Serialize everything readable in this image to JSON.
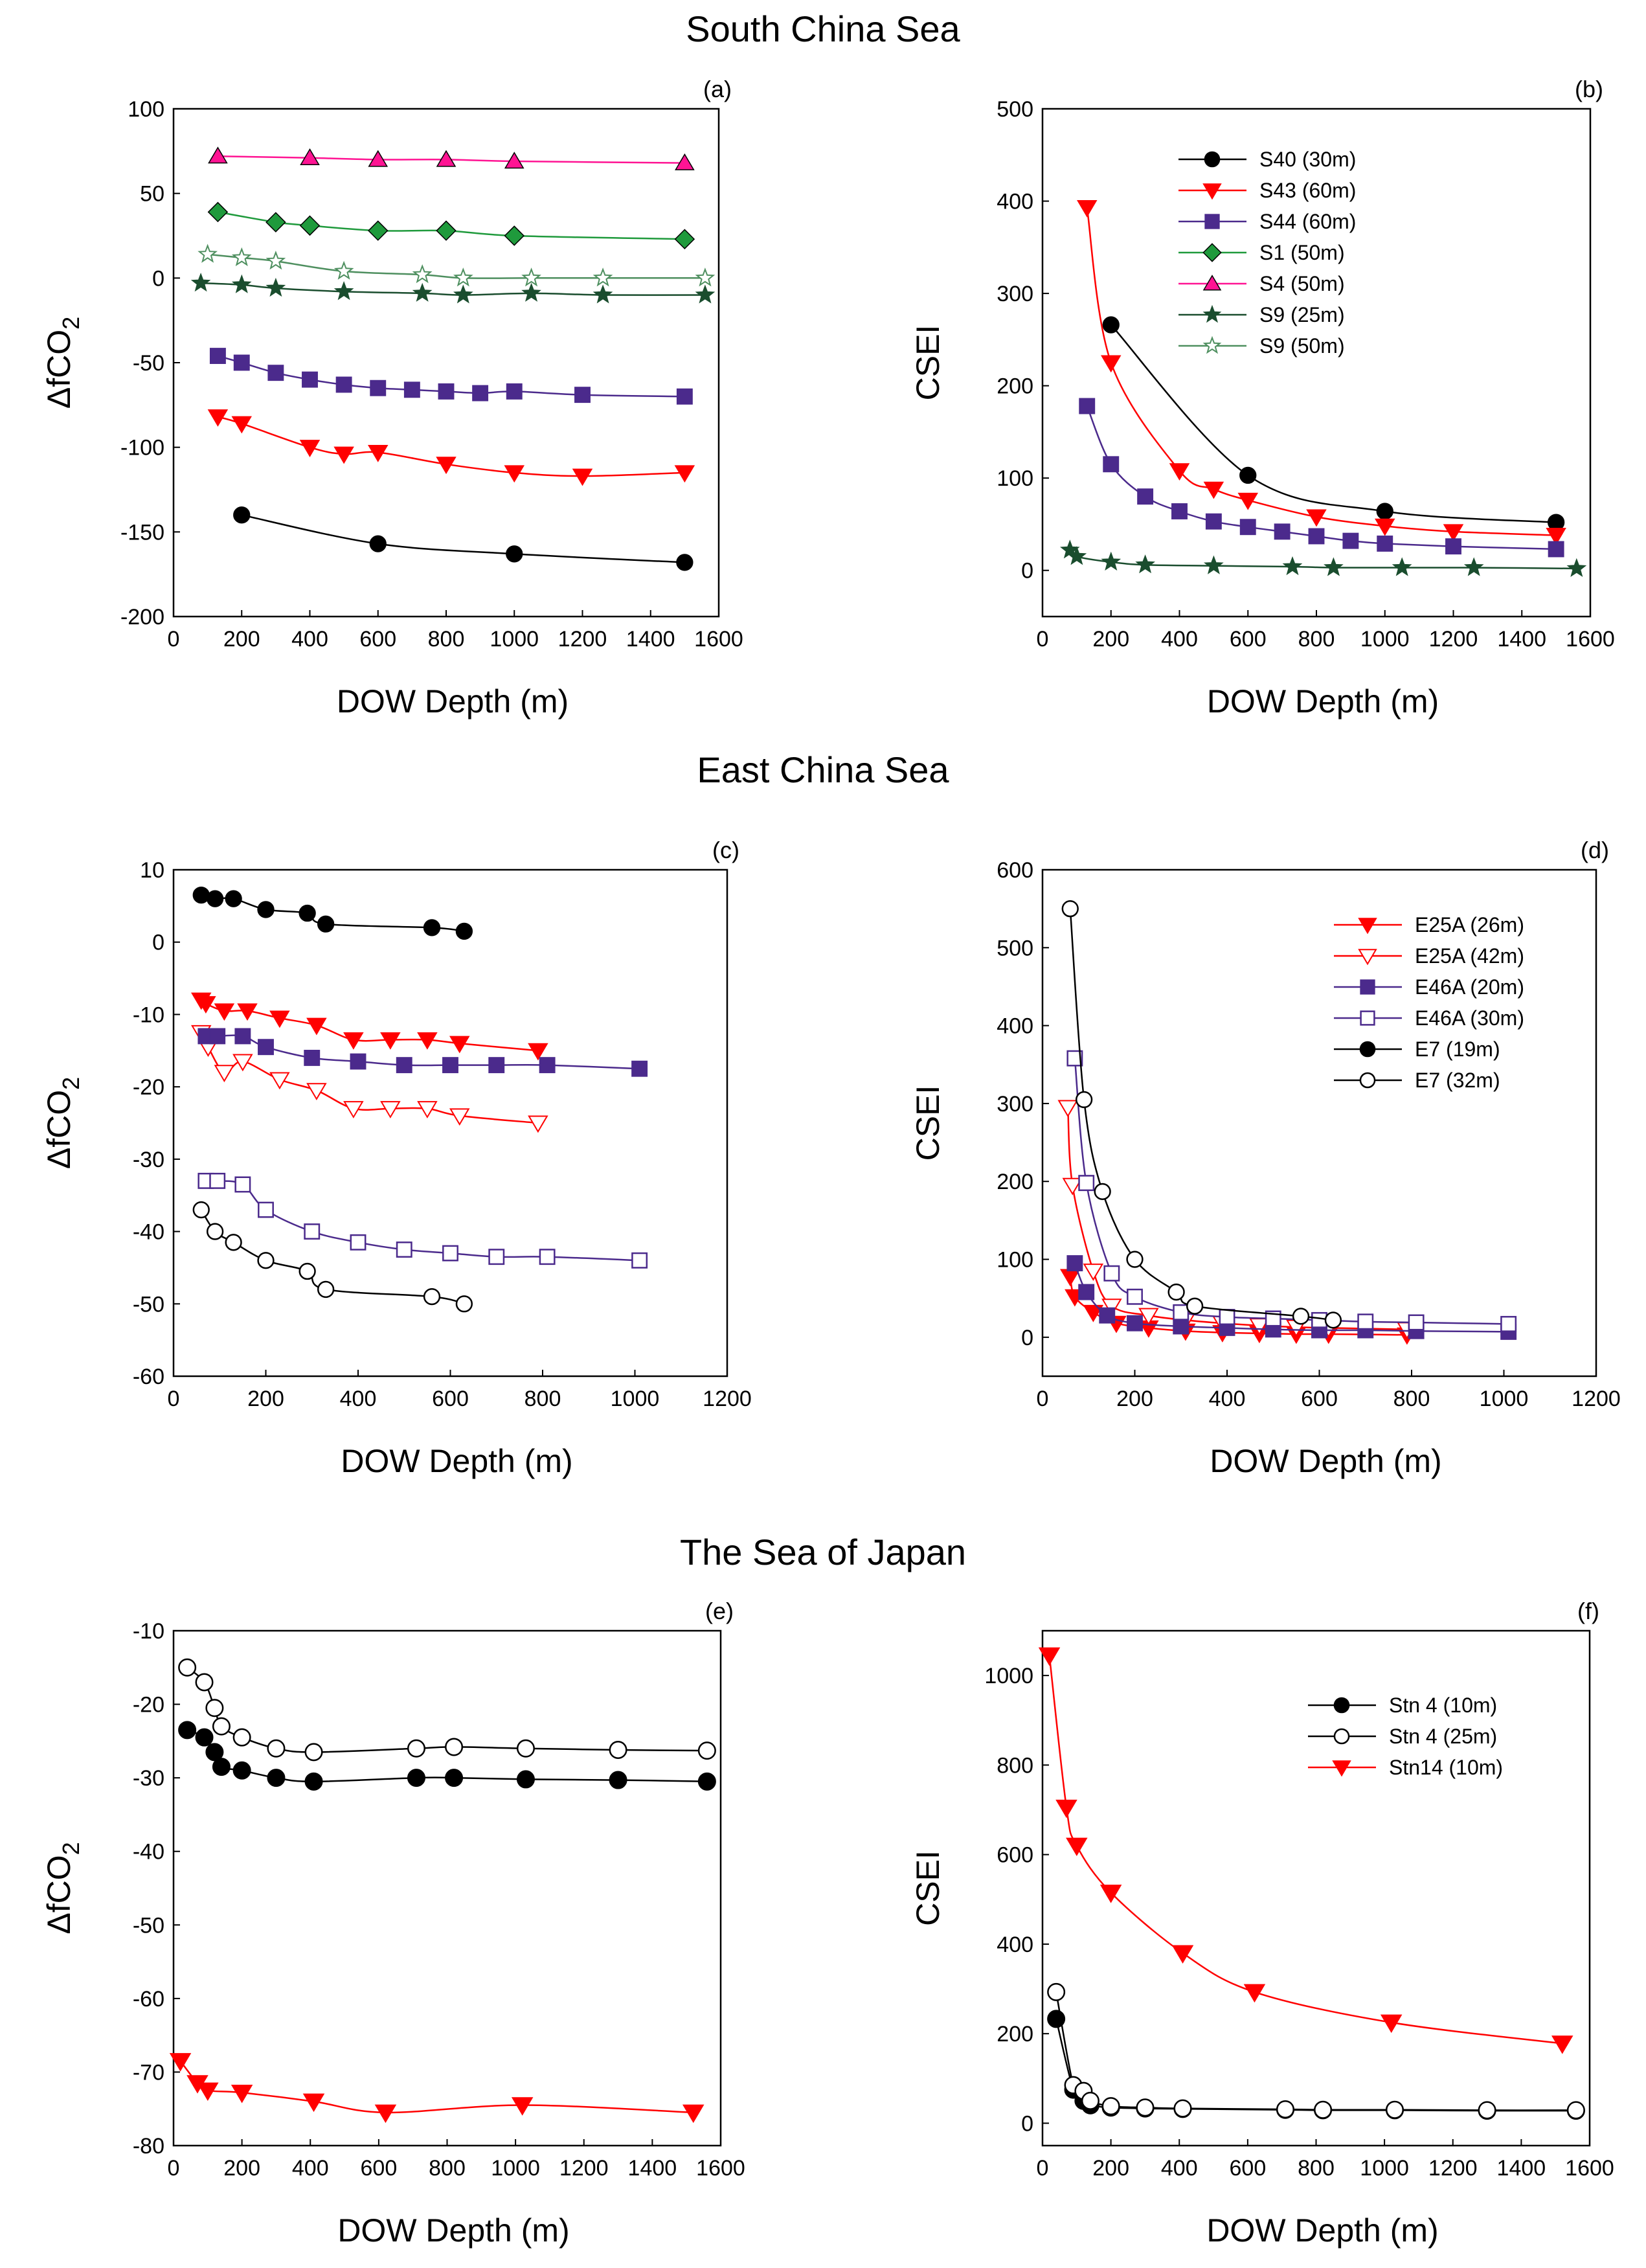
{
  "sections": [
    "South China Sea",
    "East China Sea",
    "The Sea of Japan"
  ],
  "chart_data": [
    {
      "panel": "(a)",
      "type": "line",
      "region": "South China Sea",
      "xlabel": "DOW Depth (m)",
      "ylabel": "ΔfCO",
      "ylabel_sub": "2",
      "xlim": [
        0,
        1600
      ],
      "ylim": [
        -200,
        100
      ],
      "xticks": [
        0,
        200,
        400,
        600,
        800,
        1000,
        1200,
        1400,
        1600
      ],
      "yticks": [
        -200,
        -150,
        -100,
        -50,
        0,
        50,
        100
      ],
      "legend": false,
      "series": [
        {
          "name": "S40 (30m)",
          "marker": "circle",
          "color": "#000000",
          "fill": "#000000",
          "x": [
            200,
            600,
            1000,
            1500
          ],
          "y": [
            -140,
            -157,
            -163,
            -168
          ]
        },
        {
          "name": "S43 (60m)",
          "marker": "triangle-down",
          "color": "#ff0000",
          "fill": "#ff0000",
          "x": [
            130,
            200,
            400,
            500,
            600,
            800,
            1000,
            1200,
            1500
          ],
          "y": [
            -82,
            -86,
            -100,
            -104,
            -103,
            -110,
            -115,
            -117,
            -115
          ]
        },
        {
          "name": "S44 (60m)",
          "marker": "square",
          "color": "#4b2a8c",
          "fill": "#4b2a8c",
          "x": [
            130,
            200,
            300,
            400,
            500,
            600,
            700,
            800,
            900,
            1000,
            1200,
            1500
          ],
          "y": [
            -46,
            -50,
            -56,
            -60,
            -63,
            -65,
            -66,
            -67,
            -68,
            -67,
            -69,
            -70
          ]
        },
        {
          "name": "S1 (50m)",
          "marker": "diamond",
          "color": "#1f9a3c",
          "fill": "#1f9a3c",
          "x": [
            130,
            300,
            400,
            600,
            800,
            1000,
            1500
          ],
          "y": [
            39,
            33,
            31,
            28,
            28,
            25,
            23
          ]
        },
        {
          "name": "S4 (50m)",
          "marker": "triangle-up",
          "color": "#ff1493",
          "fill": "#ff1493",
          "x": [
            130,
            400,
            600,
            800,
            1000,
            1500
          ],
          "y": [
            72,
            71,
            70,
            70,
            69,
            68
          ]
        },
        {
          "name": "S9 (25m)",
          "marker": "star",
          "color": "#1a4d2e",
          "fill": "#1a4d2e",
          "x": [
            80,
            200,
            300,
            500,
            730,
            850,
            1050,
            1260,
            1560
          ],
          "y": [
            -3,
            -4,
            -6,
            -8,
            -9,
            -10,
            -9,
            -10,
            -10
          ]
        },
        {
          "name": "S9 (50m)",
          "marker": "star",
          "color": "#4e8f5f",
          "fill": "#ffffff",
          "x": [
            100,
            200,
            300,
            500,
            730,
            850,
            1050,
            1260,
            1560
          ],
          "y": [
            14,
            12,
            10,
            4,
            2,
            0,
            0,
            0,
            0
          ]
        }
      ]
    },
    {
      "panel": "(b)",
      "type": "line",
      "region": "South China Sea",
      "xlabel": "DOW Depth (m)",
      "ylabel": "CSEI",
      "xlim": [
        0,
        1600
      ],
      "ylim": [
        -50,
        500
      ],
      "xticks": [
        0,
        200,
        400,
        600,
        800,
        1000,
        1200,
        1400,
        1600
      ],
      "yticks": [
        0,
        100,
        200,
        300,
        400,
        500
      ],
      "legend": true,
      "series": [
        {
          "name": "S40 (30m)",
          "marker": "circle",
          "color": "#000000",
          "fill": "#000000",
          "x": [
            200,
            600,
            1000,
            1500
          ],
          "y": [
            266,
            103,
            64,
            52
          ]
        },
        {
          "name": "S43 (60m)",
          "marker": "triangle-down",
          "color": "#ff0000",
          "fill": "#ff0000",
          "x": [
            130,
            200,
            400,
            500,
            600,
            800,
            1000,
            1200,
            1500
          ],
          "y": [
            393,
            225,
            108,
            88,
            76,
            58,
            48,
            42,
            38
          ]
        },
        {
          "name": "S44 (60m)",
          "marker": "square",
          "color": "#4b2a8c",
          "fill": "#4b2a8c",
          "x": [
            130,
            200,
            300,
            400,
            500,
            600,
            700,
            800,
            900,
            1000,
            1200,
            1500
          ],
          "y": [
            178,
            115,
            80,
            64,
            53,
            47,
            42,
            37,
            32,
            29,
            26,
            23
          ]
        },
        {
          "name": "S1 (50m)",
          "marker": "diamond",
          "color": "#1f9a3c",
          "fill": "#1f9a3c",
          "x": [],
          "y": []
        },
        {
          "name": "S4 (50m)",
          "marker": "triangle-up",
          "color": "#ff1493",
          "fill": "#ff1493",
          "x": [],
          "y": []
        },
        {
          "name": "S9 (25m)",
          "marker": "star",
          "color": "#1a4d2e",
          "fill": "#1a4d2e",
          "x": [
            80,
            100,
            200,
            300,
            500,
            730,
            850,
            1050,
            1260,
            1560
          ],
          "y": [
            22,
            15,
            9,
            6,
            5,
            4,
            3,
            3,
            3,
            2
          ]
        },
        {
          "name": "S9 (50m)",
          "marker": "star",
          "color": "#4e8f5f",
          "fill": "#ffffff",
          "x": [],
          "y": []
        }
      ]
    },
    {
      "panel": "(c)",
      "type": "line",
      "region": "East China Sea",
      "xlabel": "DOW Depth (m)",
      "ylabel": "ΔfCO",
      "ylabel_sub": "2",
      "xlim": [
        0,
        1200
      ],
      "ylim": [
        -60,
        10
      ],
      "xticks": [
        0,
        200,
        400,
        600,
        800,
        1000,
        1200
      ],
      "yticks": [
        -60,
        -50,
        -40,
        -30,
        -20,
        -10,
        0,
        10
      ],
      "legend": false,
      "series": [
        {
          "name": "E25A (26m)",
          "marker": "triangle-down",
          "color": "#ff0000",
          "fill": "#ff0000",
          "x": [
            60,
            70,
            110,
            160,
            230,
            310,
            390,
            470,
            550,
            620,
            790
          ],
          "y": [
            -8,
            -8.5,
            -9.5,
            -9.5,
            -10.5,
            -11.5,
            -13.5,
            -13.5,
            -13.5,
            -14,
            -15
          ]
        },
        {
          "name": "E25A (42m)",
          "marker": "triangle-down-open",
          "color": "#ff0000",
          "fill": "#ffffff",
          "x": [
            60,
            75,
            110,
            150,
            230,
            310,
            390,
            470,
            550,
            620,
            790
          ],
          "y": [
            -12.5,
            -14.5,
            -18,
            -16.5,
            -19,
            -20.5,
            -23,
            -23,
            -23,
            -24,
            -25
          ]
        },
        {
          "name": "E46A (20m)",
          "marker": "square",
          "color": "#4b2a8c",
          "fill": "#4b2a8c",
          "x": [
            70,
            95,
            150,
            200,
            300,
            400,
            500,
            600,
            700,
            810,
            1010
          ],
          "y": [
            -13,
            -13,
            -13,
            -14.5,
            -16,
            -16.5,
            -17,
            -17,
            -17,
            -17,
            -17.5
          ]
        },
        {
          "name": "E46A (30m)",
          "marker": "square-open",
          "color": "#4b2a8c",
          "fill": "#ffffff",
          "x": [
            70,
            95,
            150,
            200,
            300,
            400,
            500,
            600,
            700,
            810,
            1010
          ],
          "y": [
            -33,
            -33,
            -33.5,
            -37,
            -40,
            -41.5,
            -42.5,
            -43,
            -43.5,
            -43.5,
            -44
          ]
        },
        {
          "name": "E7 (19m)",
          "marker": "circle",
          "color": "#000000",
          "fill": "#000000",
          "x": [
            60,
            90,
            130,
            200,
            290,
            330,
            560,
            630
          ],
          "y": [
            6.5,
            6,
            6,
            4.5,
            4,
            2.5,
            2,
            1.5
          ]
        },
        {
          "name": "E7 (32m)",
          "marker": "circle-open",
          "color": "#000000",
          "fill": "#ffffff",
          "x": [
            60,
            90,
            130,
            200,
            290,
            330,
            560,
            630
          ],
          "y": [
            -37,
            -40,
            -41.5,
            -44,
            -45.5,
            -48,
            -49,
            -50
          ]
        }
      ]
    },
    {
      "panel": "(d)",
      "type": "line",
      "region": "East China Sea",
      "xlabel": "DOW Depth (m)",
      "ylabel": "CSEI",
      "xlim": [
        0,
        1200
      ],
      "ylim": [
        -50,
        600
      ],
      "xticks": [
        0,
        200,
        400,
        600,
        800,
        1000,
        1200
      ],
      "yticks": [
        0,
        100,
        200,
        300,
        400,
        500,
        600
      ],
      "legend": true,
      "series": [
        {
          "name": "E25A (26m)",
          "marker": "triangle-down",
          "color": "#ff0000",
          "fill": "#ff0000",
          "x": [
            60,
            70,
            110,
            160,
            230,
            310,
            390,
            470,
            550,
            620,
            790
          ],
          "y": [
            78,
            52,
            32,
            18,
            12,
            8,
            6,
            5,
            4,
            4,
            3
          ]
        },
        {
          "name": "E25A (42m)",
          "marker": "triangle-down-open",
          "color": "#ff0000",
          "fill": "#ffffff",
          "x": [
            55,
            65,
            110,
            150,
            230,
            310,
            390,
            470,
            550,
            620,
            790
          ],
          "y": [
            295,
            195,
            85,
            40,
            28,
            22,
            18,
            15,
            13,
            12,
            10
          ]
        },
        {
          "name": "E46A (20m)",
          "marker": "square",
          "color": "#4b2a8c",
          "fill": "#4b2a8c",
          "x": [
            70,
            95,
            140,
            200,
            300,
            400,
            500,
            600,
            700,
            810,
            1010
          ],
          "y": [
            95,
            58,
            28,
            18,
            14,
            12,
            10,
            9,
            9,
            8,
            7
          ]
        },
        {
          "name": "E46A (30m)",
          "marker": "square-open",
          "color": "#4b2a8c",
          "fill": "#ffffff",
          "x": [
            70,
            95,
            150,
            200,
            300,
            400,
            500,
            600,
            700,
            810,
            1010
          ],
          "y": [
            358,
            198,
            82,
            52,
            32,
            26,
            24,
            22,
            20,
            19,
            17
          ]
        },
        {
          "name": "E7 (19m)",
          "marker": "circle",
          "color": "#000000",
          "fill": "#000000",
          "x": [],
          "y": []
        },
        {
          "name": "E7 (32m)",
          "marker": "circle-open",
          "color": "#000000",
          "fill": "#ffffff",
          "x": [
            60,
            90,
            130,
            200,
            290,
            330,
            560,
            630
          ],
          "y": [
            550,
            305,
            187,
            100,
            58,
            40,
            27,
            22
          ]
        }
      ]
    },
    {
      "panel": "(e)",
      "type": "line",
      "region": "The Sea of Japan",
      "xlabel": "DOW Depth (m)",
      "ylabel": "ΔfCO",
      "ylabel_sub": "2",
      "xlim": [
        0,
        1600
      ],
      "ylim": [
        -80,
        -10
      ],
      "xticks": [
        0,
        200,
        400,
        600,
        800,
        1000,
        1200,
        1400,
        1600
      ],
      "yticks": [
        -80,
        -70,
        -60,
        -50,
        -40,
        -30,
        -20,
        -10
      ],
      "legend": false,
      "series": [
        {
          "name": "Stn 4 (10m)",
          "marker": "circle",
          "color": "#000000",
          "fill": "#000000",
          "x": [
            40,
            90,
            120,
            140,
            200,
            300,
            410,
            710,
            820,
            1030,
            1300,
            1560
          ],
          "y": [
            -23.5,
            -24.5,
            -26.5,
            -28.5,
            -29,
            -30,
            -30.5,
            -30,
            -30,
            -30.2,
            -30.3,
            -30.5
          ]
        },
        {
          "name": "Stn 4 (25m)",
          "marker": "circle-open",
          "color": "#000000",
          "fill": "#ffffff",
          "x": [
            40,
            90,
            120,
            140,
            200,
            300,
            410,
            710,
            820,
            1030,
            1300,
            1560
          ],
          "y": [
            -15,
            -17,
            -20.5,
            -23,
            -24.5,
            -26,
            -26.5,
            -26,
            -25.8,
            -26,
            -26.2,
            -26.3
          ]
        },
        {
          "name": "Stn14 (10m)",
          "marker": "triangle-down",
          "color": "#ff0000",
          "fill": "#ff0000",
          "x": [
            20,
            70,
            100,
            200,
            410,
            620,
            1020,
            1520
          ],
          "y": [
            -68.5,
            -71.5,
            -72.5,
            -72.8,
            -74,
            -75.5,
            -74.5,
            -75.5
          ]
        }
      ]
    },
    {
      "panel": "(f)",
      "type": "line",
      "region": "The Sea of Japan",
      "xlabel": "DOW Depth (m)",
      "ylabel": "CSEI",
      "xlim": [
        0,
        1600
      ],
      "ylim": [
        -50,
        1100
      ],
      "xticks": [
        0,
        200,
        400,
        600,
        800,
        1000,
        1200,
        1400,
        1600
      ],
      "yticks": [
        0,
        200,
        400,
        600,
        800,
        1000
      ],
      "legend": true,
      "series": [
        {
          "name": "Stn 4 (10m)",
          "marker": "circle",
          "color": "#000000",
          "fill": "#000000",
          "x": [
            40,
            90,
            120,
            140,
            200,
            300,
            410,
            710,
            820,
            1030,
            1300,
            1560
          ],
          "y": [
            233,
            75,
            50,
            40,
            35,
            33,
            32,
            30,
            29,
            29,
            28,
            28
          ]
        },
        {
          "name": "Stn 4 (25m)",
          "marker": "circle-open",
          "color": "#000000",
          "fill": "#ffffff",
          "x": [
            40,
            90,
            120,
            140,
            200,
            300,
            410,
            710,
            820,
            1030,
            1300,
            1560
          ],
          "y": [
            293,
            85,
            72,
            50,
            38,
            35,
            33,
            31,
            30,
            30,
            29,
            29
          ]
        },
        {
          "name": "Stn14 (10m)",
          "marker": "triangle-down",
          "color": "#ff0000",
          "fill": "#ff0000",
          "x": [
            20,
            70,
            100,
            200,
            410,
            620,
            1020,
            1520
          ],
          "y": [
            1045,
            705,
            620,
            515,
            380,
            293,
            225,
            178
          ]
        }
      ]
    }
  ]
}
